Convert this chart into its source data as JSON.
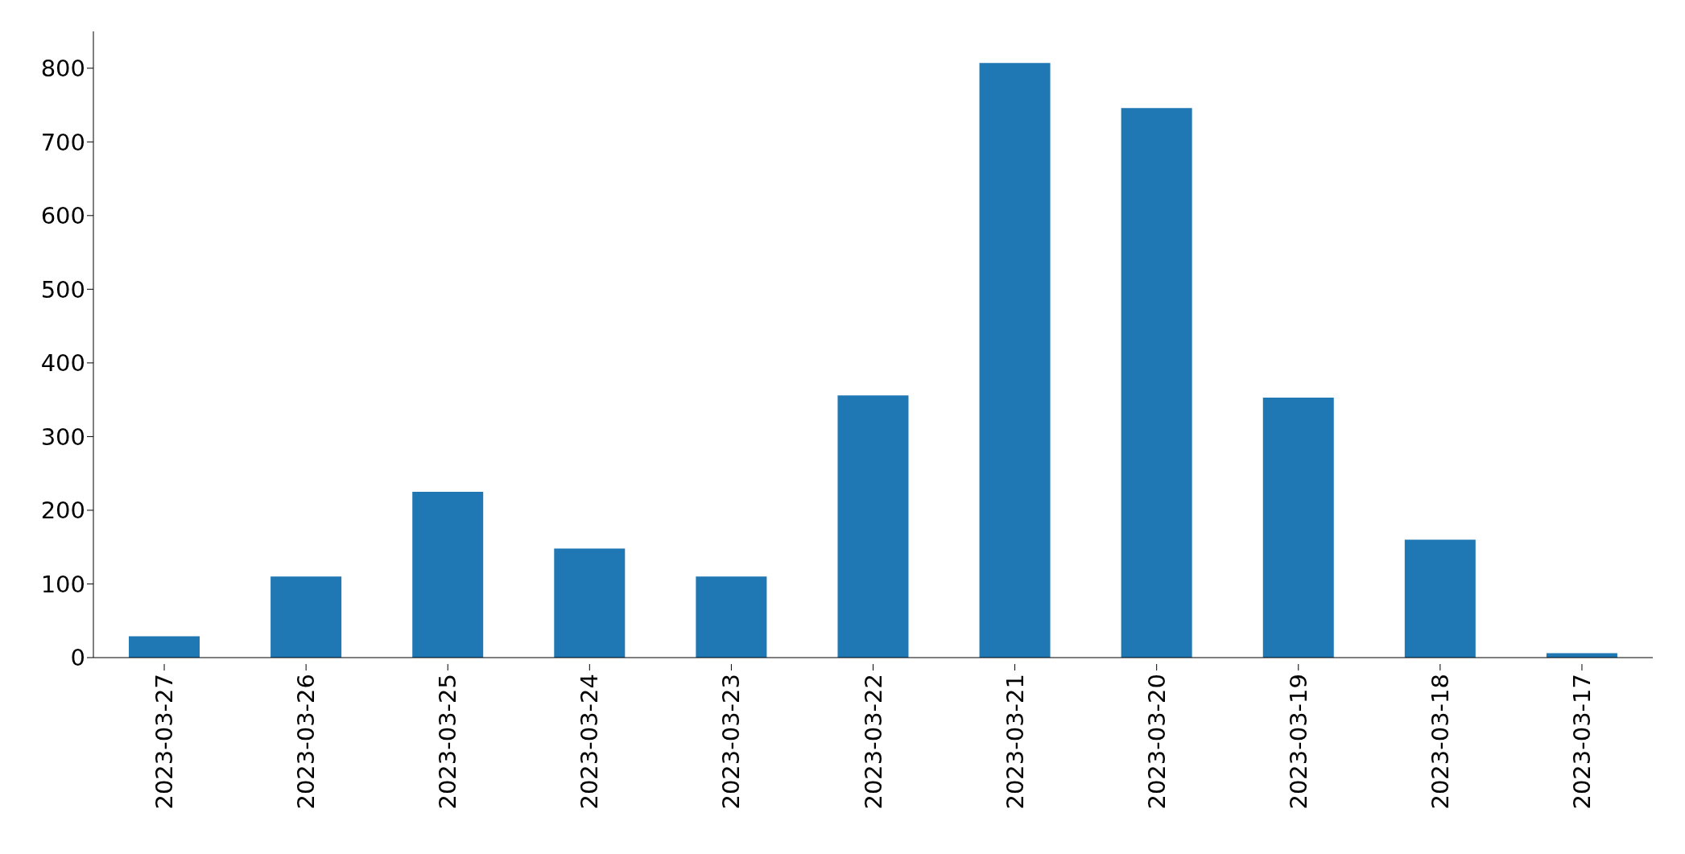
{
  "chart_data": {
    "type": "bar",
    "categories": [
      "2023-03-27",
      "2023-03-26",
      "2023-03-25",
      "2023-03-24",
      "2023-03-23",
      "2023-03-22",
      "2023-03-21",
      "2023-03-20",
      "2023-03-19",
      "2023-03-18",
      "2023-03-17"
    ],
    "values": [
      29,
      110,
      225,
      148,
      110,
      356,
      807,
      746,
      353,
      160,
      6
    ],
    "color": "#1f77b4",
    "ylim": [
      0,
      850
    ],
    "yticks": [
      0,
      100,
      200,
      300,
      400,
      500,
      600,
      700,
      800
    ],
    "grid": false
  }
}
